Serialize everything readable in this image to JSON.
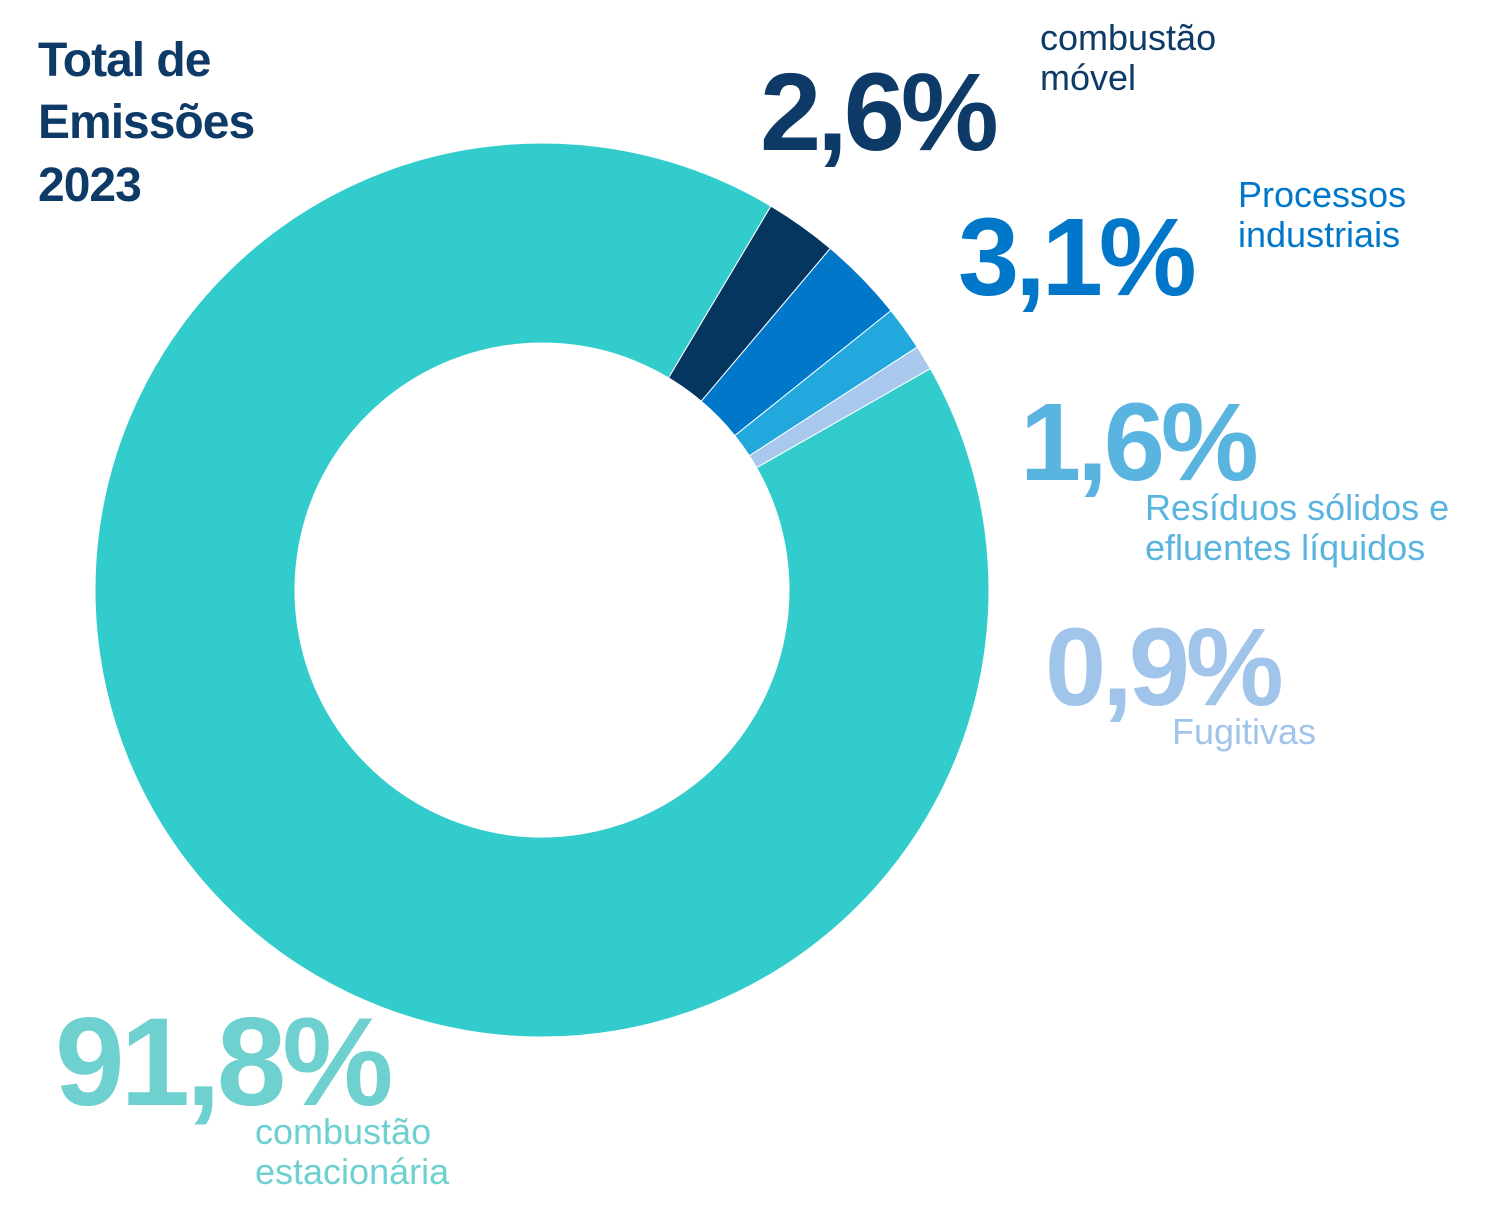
{
  "chart_data": {
    "type": "donut",
    "title": "Total de Emissões 2023",
    "categories": [
      "combustão móvel",
      "Processos industriais",
      "Resíduos sólidos e efluentes líquidos",
      "Fugitivas",
      "combustão estacionária"
    ],
    "values": [
      2.6,
      3.1,
      1.6,
      0.9,
      91.8
    ],
    "value_labels": [
      "2,6%",
      "3,1%",
      "1,6%",
      "0,9%",
      "91,8%"
    ],
    "colors": [
      "#04365f",
      "#0077c8",
      "#22a8dd",
      "#a8c8ee",
      "#33cccc"
    ],
    "label_colors": [
      "#0d3a66",
      "#0077c8",
      "#5ab4e0",
      "#a0c4ea",
      "#6fd0d0"
    ]
  }
}
